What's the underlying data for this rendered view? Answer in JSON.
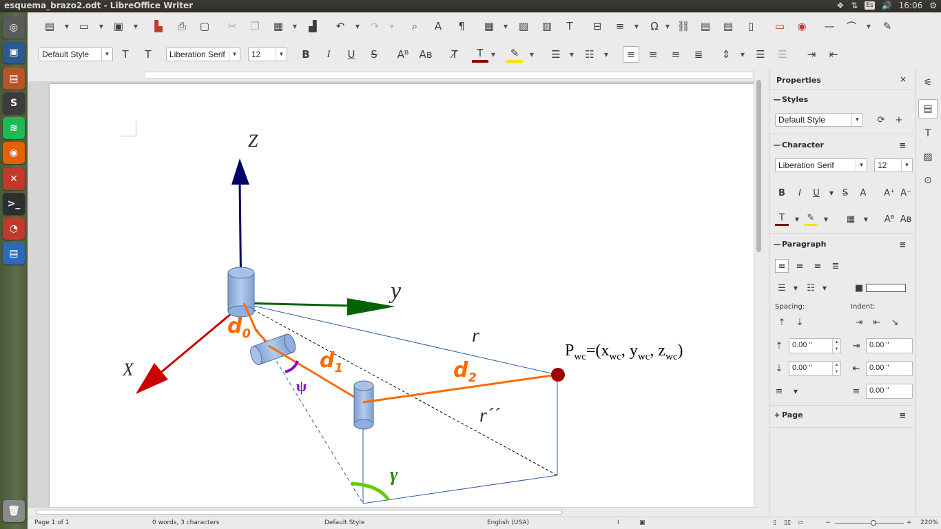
{
  "window": {
    "title": "esquema_brazo2.odt - LibreOffice Writer"
  },
  "tray": {
    "keyboard": "Es",
    "time": "16:06"
  },
  "launcher": {
    "items": [
      {
        "name": "ubuntu-home-icon",
        "glyph": "◎",
        "color": "#5a5a5a"
      },
      {
        "name": "virtualbox-icon",
        "glyph": "▣",
        "color": "#2a5a8f"
      },
      {
        "name": "file-manager-icon",
        "glyph": "▤",
        "color": "#b8542a"
      },
      {
        "name": "sublime-text-icon",
        "glyph": "S",
        "color": "#3c3c3c"
      },
      {
        "name": "spotify-icon",
        "glyph": "≋",
        "color": "#1db954"
      },
      {
        "name": "firefox-icon",
        "glyph": "◉",
        "color": "#e66000"
      },
      {
        "name": "system-settings-icon",
        "glyph": "✕",
        "color": "#c0392b"
      },
      {
        "name": "terminal-icon",
        "glyph": ">_",
        "color": "#2e2e2e"
      },
      {
        "name": "libreoffice-impress-icon",
        "glyph": "◔",
        "color": "#c0392b"
      },
      {
        "name": "libreoffice-writer-icon",
        "glyph": "▤",
        "color": "#2a6ab8"
      },
      {
        "name": "trash-icon",
        "glyph": "🗑",
        "color": "#8a8a8a"
      }
    ]
  },
  "toolbar": {
    "paragraph_style": "Default Style",
    "font_name": "Liberation Serif",
    "font_size": "12"
  },
  "sidebar": {
    "title": "Properties",
    "sections": {
      "styles": "Styles",
      "character": "Character",
      "paragraph": "Paragraph",
      "page": "Page"
    },
    "style_value": "Default Style",
    "font_value": "Liberation Serif",
    "size_value": "12",
    "spacing_label": "Spacing:",
    "indent_label": "Indent:",
    "spacing_above": "0.00 \"",
    "spacing_below": "0.00 \"",
    "indent_before": "0.00 \"",
    "indent_after": "0.00 \"",
    "indent_first": "0.00 \""
  },
  "statusbar": {
    "page": "Page 1 of 1",
    "words": "0 words, 3 characters",
    "style": "Default Style",
    "language": "English (USA)",
    "zoom": "220%"
  },
  "diagram": {
    "label_z": "Z",
    "label_y": "y",
    "label_x": "X",
    "label_r": "r",
    "label_r2": "r´´",
    "label_d0": "d",
    "label_d0_sub": "0",
    "label_d1": "d",
    "label_d1_sub": "1",
    "label_d2": "d",
    "label_d2_sub": "2",
    "label_psi": "ψ",
    "label_gamma": "γ",
    "pwc_p": "P",
    "pwc_sub": "wc",
    "pwc_eq": "=(x",
    "pwc_x_sub": "wc",
    "pwc_comma1": ", y",
    "pwc_y_sub": "wc",
    "pwc_comma2": ", z",
    "pwc_z_sub": "wc",
    "pwc_close": ")",
    "colors": {
      "z_axis": "#000066",
      "y_axis": "#006400",
      "x_axis": "#cc0000",
      "link": "#ff6a00",
      "psi": "#8800cc",
      "gamma": "#66cc00",
      "endpoint": "#a00000",
      "cylinder": "#8eaee0"
    }
  }
}
